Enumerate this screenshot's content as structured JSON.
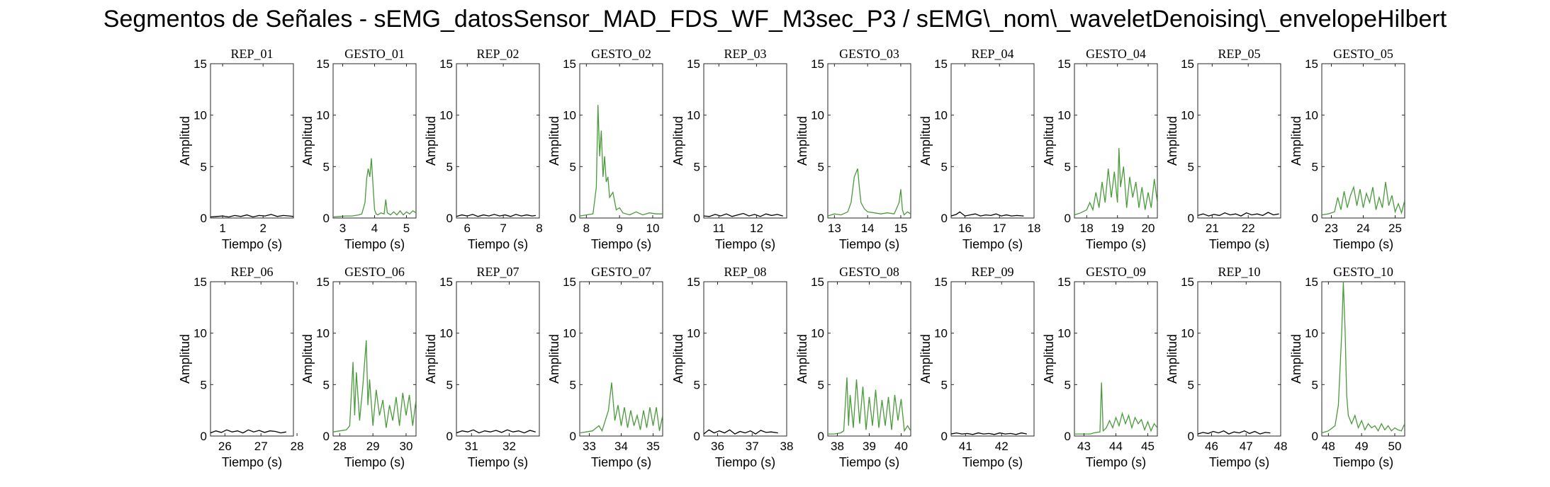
{
  "figure": {
    "title": "Segmentos de Señales - sEMG_datosSensor_MAD_FDS_WF_M3sec_P3 / sEMG\\_nom\\_waveletDenoising\\_envelopeHilbert"
  },
  "colors": {
    "rep": "#000000",
    "gesto": "#4a9a3c",
    "axes": "#262626"
  },
  "chart_data": [
    {
      "type": "line",
      "title": "REP_01",
      "xlabel": "Tiempo (s)",
      "ylabel": "Amplitud",
      "xlim": [
        0.7,
        2.75
      ],
      "ylim": [
        0,
        15
      ],
      "xticks": [
        1,
        2
      ],
      "yticks": [
        0,
        5,
        10,
        15
      ],
      "color": "#000000",
      "x": [
        0.7,
        0.85,
        1.0,
        1.15,
        1.3,
        1.45,
        1.6,
        1.75,
        1.9,
        2.05,
        2.2,
        2.35,
        2.5,
        2.65,
        2.75
      ],
      "y": [
        0.1,
        0.15,
        0.2,
        0.1,
        0.25,
        0.15,
        0.3,
        0.1,
        0.25,
        0.2,
        0.35,
        0.15,
        0.25,
        0.2,
        0.15
      ]
    },
    {
      "type": "line",
      "title": "GESTO_01",
      "xlabel": "Tiempo (s)",
      "ylabel": "Amplitud",
      "xlim": [
        2.7,
        5.3
      ],
      "ylim": [
        0,
        15
      ],
      "xticks": [
        3,
        4,
        5
      ],
      "yticks": [
        0,
        5,
        10,
        15
      ],
      "color": "#4a9a3c",
      "x": [
        2.7,
        2.9,
        3.1,
        3.3,
        3.5,
        3.6,
        3.7,
        3.75,
        3.8,
        3.85,
        3.9,
        3.95,
        4.0,
        4.05,
        4.1,
        4.2,
        4.3,
        4.35,
        4.4,
        4.5,
        4.6,
        4.7,
        4.8,
        4.9,
        5.0,
        5.1,
        5.2,
        5.3
      ],
      "y": [
        0.1,
        0.15,
        0.2,
        0.2,
        0.3,
        0.4,
        1.5,
        3.8,
        4.8,
        4.0,
        5.8,
        3.2,
        0.8,
        0.4,
        0.3,
        0.5,
        0.4,
        1.8,
        0.5,
        0.3,
        0.6,
        0.3,
        0.7,
        0.3,
        0.6,
        0.4,
        0.7,
        0.5
      ]
    },
    {
      "type": "line",
      "title": "REP_02",
      "xlabel": "Tiempo (s)",
      "ylabel": "Amplitud",
      "xlim": [
        5.7,
        8.0
      ],
      "ylim": [
        0,
        15
      ],
      "xticks": [
        6,
        7,
        8
      ],
      "yticks": [
        0,
        5,
        10,
        15
      ],
      "color": "#000000",
      "x": [
        5.7,
        5.85,
        6.0,
        6.15,
        6.3,
        6.45,
        6.6,
        6.75,
        6.9,
        7.05,
        7.2,
        7.35,
        7.5,
        7.65,
        7.8,
        7.9
      ],
      "y": [
        0.15,
        0.3,
        0.2,
        0.35,
        0.15,
        0.3,
        0.2,
        0.35,
        0.2,
        0.3,
        0.15,
        0.35,
        0.2,
        0.3,
        0.2,
        0.25
      ]
    },
    {
      "type": "line",
      "title": "GESTO_02",
      "xlabel": "Tiempo (s)",
      "ylabel": "Amplitud",
      "xlim": [
        7.8,
        10.3
      ],
      "ylim": [
        0,
        15
      ],
      "xticks": [
        8,
        9,
        10
      ],
      "yticks": [
        0,
        5,
        10,
        15
      ],
      "color": "#4a9a3c",
      "x": [
        7.8,
        8.0,
        8.2,
        8.3,
        8.35,
        8.4,
        8.45,
        8.5,
        8.55,
        8.6,
        8.65,
        8.7,
        8.8,
        8.9,
        9.0,
        9.1,
        9.3,
        9.5,
        9.7,
        9.9,
        10.1,
        10.3
      ],
      "y": [
        0.2,
        0.3,
        0.4,
        3.0,
        11.0,
        6.0,
        8.5,
        4.0,
        6.0,
        3.5,
        4.0,
        2.0,
        2.5,
        0.8,
        1.0,
        0.5,
        0.3,
        0.6,
        0.3,
        0.5,
        0.4,
        0.4
      ]
    },
    {
      "type": "line",
      "title": "REP_03",
      "xlabel": "Tiempo (s)",
      "ylabel": "Amplitud",
      "xlim": [
        10.6,
        12.8
      ],
      "ylim": [
        0,
        15
      ],
      "xticks": [
        11,
        12
      ],
      "yticks": [
        0,
        5,
        10,
        15
      ],
      "color": "#000000",
      "x": [
        10.6,
        10.75,
        10.9,
        11.05,
        11.2,
        11.35,
        11.5,
        11.65,
        11.8,
        11.95,
        12.1,
        12.25,
        12.4,
        12.55,
        12.7
      ],
      "y": [
        0.2,
        0.15,
        0.35,
        0.2,
        0.4,
        0.15,
        0.3,
        0.45,
        0.2,
        0.35,
        0.15,
        0.4,
        0.25,
        0.35,
        0.2
      ]
    },
    {
      "type": "line",
      "title": "GESTO_03",
      "xlabel": "Tiempo (s)",
      "ylabel": "Amplitud",
      "xlim": [
        12.8,
        15.3
      ],
      "ylim": [
        0,
        15
      ],
      "xticks": [
        13,
        14,
        15
      ],
      "yticks": [
        0,
        5,
        10,
        15
      ],
      "color": "#4a9a3c",
      "x": [
        12.8,
        13.0,
        13.2,
        13.4,
        13.5,
        13.6,
        13.7,
        13.75,
        13.8,
        13.9,
        14.0,
        14.2,
        14.4,
        14.6,
        14.8,
        14.95,
        15.0,
        15.05,
        15.1,
        15.2,
        15.3
      ],
      "y": [
        0.2,
        0.4,
        0.3,
        0.6,
        1.5,
        4.0,
        4.8,
        3.0,
        1.5,
        0.9,
        0.6,
        0.5,
        0.4,
        0.5,
        0.4,
        1.5,
        2.8,
        0.8,
        0.3,
        0.6,
        0.4
      ]
    },
    {
      "type": "line",
      "title": "REP_04",
      "xlabel": "Tiempo (s)",
      "ylabel": "Amplitud",
      "xlim": [
        15.6,
        18.0
      ],
      "ylim": [
        0,
        15
      ],
      "xticks": [
        16,
        17,
        18
      ],
      "yticks": [
        0,
        5,
        10,
        15
      ],
      "color": "#000000",
      "x": [
        15.6,
        15.75,
        15.85,
        16.0,
        16.15,
        16.3,
        16.45,
        16.6,
        16.75,
        16.9,
        17.05,
        17.2,
        17.35,
        17.5,
        17.7
      ],
      "y": [
        0.2,
        0.35,
        0.6,
        0.2,
        0.3,
        0.4,
        0.2,
        0.3,
        0.25,
        0.4,
        0.2,
        0.3,
        0.2,
        0.25,
        0.2
      ]
    },
    {
      "type": "line",
      "title": "GESTO_04",
      "xlabel": "Tiempo (s)",
      "ylabel": "Amplitud",
      "xlim": [
        17.6,
        20.3
      ],
      "ylim": [
        0,
        15
      ],
      "xticks": [
        18,
        19,
        20
      ],
      "yticks": [
        0,
        5,
        10,
        15
      ],
      "color": "#4a9a3c",
      "x": [
        17.6,
        17.8,
        18.0,
        18.1,
        18.2,
        18.3,
        18.4,
        18.5,
        18.6,
        18.7,
        18.8,
        18.9,
        19.0,
        19.05,
        19.1,
        19.2,
        19.3,
        19.4,
        19.5,
        19.6,
        19.7,
        19.8,
        19.9,
        20.0,
        20.1,
        20.2,
        20.3
      ],
      "y": [
        0.3,
        0.5,
        0.8,
        1.5,
        0.8,
        2.5,
        1.0,
        3.5,
        1.5,
        4.8,
        2.0,
        4.5,
        1.5,
        6.8,
        3.0,
        5.0,
        1.0,
        4.0,
        2.0,
        3.5,
        1.0,
        3.0,
        0.8,
        2.5,
        1.0,
        3.8,
        1.5
      ]
    },
    {
      "type": "line",
      "title": "REP_05",
      "xlabel": "Tiempo (s)",
      "ylabel": "Amplitud",
      "xlim": [
        20.6,
        22.9
      ],
      "ylim": [
        0,
        15
      ],
      "xticks": [
        21,
        22
      ],
      "yticks": [
        0,
        5,
        10,
        15
      ],
      "color": "#000000",
      "x": [
        20.6,
        20.75,
        20.9,
        21.05,
        21.2,
        21.35,
        21.5,
        21.65,
        21.8,
        21.95,
        22.1,
        22.25,
        22.4,
        22.55,
        22.7,
        22.85
      ],
      "y": [
        0.25,
        0.4,
        0.2,
        0.35,
        0.25,
        0.5,
        0.3,
        0.4,
        0.2,
        0.5,
        0.3,
        0.4,
        0.25,
        0.55,
        0.3,
        0.4
      ]
    },
    {
      "type": "line",
      "title": "GESTO_05",
      "xlabel": "Tiempo (s)",
      "ylabel": "Amplitud",
      "xlim": [
        22.7,
        25.3
      ],
      "ylim": [
        0,
        15
      ],
      "xticks": [
        23,
        24,
        25
      ],
      "yticks": [
        0,
        5,
        10,
        15
      ],
      "color": "#4a9a3c",
      "x": [
        22.7,
        22.9,
        23.1,
        23.2,
        23.3,
        23.4,
        23.5,
        23.6,
        23.7,
        23.8,
        23.9,
        24.0,
        24.1,
        24.2,
        24.3,
        24.4,
        24.5,
        24.6,
        24.7,
        24.8,
        24.9,
        25.0,
        25.1,
        25.2,
        25.3
      ],
      "y": [
        0.3,
        0.4,
        0.6,
        2.0,
        0.8,
        2.6,
        1.0,
        2.2,
        3.0,
        1.2,
        2.8,
        1.0,
        2.4,
        1.5,
        3.0,
        0.8,
        2.0,
        1.0,
        3.5,
        1.2,
        2.2,
        0.6,
        1.4,
        0.5,
        1.7
      ]
    },
    {
      "type": "line",
      "title": "REP_06",
      "xlabel": "Tiempo (s)",
      "ylabel": "Amplitud",
      "xlim": [
        25.6,
        27.9
      ],
      "ylim": [
        0,
        15
      ],
      "xticks": [
        26,
        27,
        28
      ],
      "yticks": [
        0,
        5,
        10,
        15
      ],
      "color": "#000000",
      "x": [
        25.6,
        25.75,
        25.9,
        26.05,
        26.2,
        26.35,
        26.5,
        26.65,
        26.8,
        26.95,
        27.1,
        27.25,
        27.4,
        27.55,
        27.7
      ],
      "y": [
        0.3,
        0.5,
        0.35,
        0.6,
        0.4,
        0.5,
        0.3,
        0.6,
        0.4,
        0.55,
        0.35,
        0.5,
        0.45,
        0.3,
        0.4
      ]
    },
    {
      "type": "line",
      "title": "GESTO_06",
      "xlabel": "Tiempo (s)",
      "ylabel": "Amplitud",
      "xlim": [
        27.8,
        30.3
      ],
      "ylim": [
        0,
        15
      ],
      "xticks": [
        28,
        29,
        30
      ],
      "yticks": [
        0,
        5,
        10,
        15
      ],
      "color": "#4a9a3c",
      "x": [
        27.8,
        28.0,
        28.2,
        28.3,
        28.4,
        28.45,
        28.5,
        28.6,
        28.7,
        28.8,
        28.85,
        28.9,
        29.0,
        29.1,
        29.2,
        29.3,
        29.4,
        29.5,
        29.6,
        29.7,
        29.8,
        29.9,
        30.0,
        30.1,
        30.2,
        30.3
      ],
      "y": [
        0.4,
        0.5,
        0.6,
        1.0,
        7.2,
        2.0,
        6.2,
        1.5,
        5.0,
        9.3,
        3.0,
        5.5,
        1.0,
        4.5,
        2.0,
        3.5,
        0.8,
        3.0,
        1.5,
        3.8,
        1.0,
        4.2,
        2.0,
        4.0,
        1.0,
        3.5
      ]
    },
    {
      "type": "line",
      "title": "REP_07",
      "xlabel": "Tiempo (s)",
      "ylabel": "Amplitud",
      "xlim": [
        30.6,
        32.8
      ],
      "ylim": [
        0,
        15
      ],
      "xticks": [
        31,
        32
      ],
      "yticks": [
        0,
        5,
        10,
        15
      ],
      "color": "#000000",
      "x": [
        30.6,
        30.75,
        30.9,
        31.05,
        31.2,
        31.35,
        31.5,
        31.65,
        31.8,
        31.95,
        32.1,
        32.25,
        32.4,
        32.55,
        32.7
      ],
      "y": [
        0.3,
        0.5,
        0.4,
        0.6,
        0.3,
        0.5,
        0.4,
        0.55,
        0.35,
        0.6,
        0.4,
        0.5,
        0.3,
        0.55,
        0.4
      ]
    },
    {
      "type": "line",
      "title": "GESTO_07",
      "xlabel": "Tiempo (s)",
      "ylabel": "Amplitud",
      "xlim": [
        32.7,
        35.3
      ],
      "ylim": [
        0,
        15
      ],
      "xticks": [
        33,
        34,
        35
      ],
      "yticks": [
        0,
        5,
        10,
        15
      ],
      "color": "#4a9a3c",
      "x": [
        32.7,
        32.9,
        33.1,
        33.3,
        33.4,
        33.5,
        33.6,
        33.7,
        33.8,
        33.9,
        34.0,
        34.1,
        34.2,
        34.3,
        34.4,
        34.5,
        34.6,
        34.7,
        34.8,
        34.9,
        35.0,
        35.1,
        35.2,
        35.3
      ],
      "y": [
        0.3,
        0.4,
        0.5,
        1.0,
        0.5,
        1.5,
        2.5,
        5.2,
        1.5,
        3.0,
        1.0,
        2.8,
        0.8,
        2.5,
        1.0,
        2.0,
        0.6,
        2.5,
        0.8,
        2.8,
        1.0,
        2.8,
        0.5,
        2.0
      ]
    },
    {
      "type": "line",
      "title": "REP_08",
      "xlabel": "Tiempo (s)",
      "ylabel": "Amplitud",
      "xlim": [
        35.6,
        38.0
      ],
      "ylim": [
        0,
        15
      ],
      "xticks": [
        36,
        37,
        38
      ],
      "yticks": [
        0,
        5,
        10,
        15
      ],
      "color": "#000000",
      "x": [
        35.6,
        35.75,
        35.9,
        36.05,
        36.2,
        36.35,
        36.5,
        36.65,
        36.8,
        36.95,
        37.1,
        37.25,
        37.4,
        37.55,
        37.75
      ],
      "y": [
        0.2,
        0.6,
        0.3,
        0.5,
        0.3,
        0.6,
        0.2,
        0.45,
        0.3,
        0.5,
        0.2,
        0.55,
        0.35,
        0.4,
        0.3
      ]
    },
    {
      "type": "line",
      "title": "GESTO_08",
      "xlabel": "Tiempo (s)",
      "ylabel": "Amplitud",
      "xlim": [
        37.7,
        40.3
      ],
      "ylim": [
        0,
        15
      ],
      "xticks": [
        38,
        39,
        40
      ],
      "yticks": [
        0,
        5,
        10,
        15
      ],
      "color": "#4a9a3c",
      "x": [
        37.7,
        37.9,
        38.1,
        38.2,
        38.3,
        38.35,
        38.4,
        38.5,
        38.6,
        38.7,
        38.8,
        38.9,
        39.0,
        39.1,
        39.2,
        39.3,
        39.4,
        39.5,
        39.6,
        39.7,
        39.8,
        39.9,
        40.0,
        40.1,
        40.2,
        40.3
      ],
      "y": [
        0.2,
        0.2,
        0.3,
        0.5,
        5.7,
        1.0,
        4.0,
        0.8,
        5.5,
        1.2,
        4.8,
        0.6,
        3.8,
        1.0,
        4.5,
        0.8,
        3.5,
        1.0,
        3.8,
        0.6,
        4.0,
        1.5,
        3.6,
        0.5,
        1.0,
        0.5
      ]
    },
    {
      "type": "line",
      "title": "REP_09",
      "xlabel": "Tiempo (s)",
      "ylabel": "Amplitud",
      "xlim": [
        40.6,
        42.9
      ],
      "ylim": [
        0,
        15
      ],
      "xticks": [
        41,
        42
      ],
      "yticks": [
        0,
        5,
        10,
        15
      ],
      "color": "#000000",
      "x": [
        40.6,
        40.75,
        40.9,
        41.05,
        41.2,
        41.35,
        41.5,
        41.65,
        41.8,
        41.95,
        42.1,
        42.25,
        42.4,
        42.55,
        42.7
      ],
      "y": [
        0.2,
        0.3,
        0.2,
        0.25,
        0.15,
        0.3,
        0.2,
        0.25,
        0.15,
        0.3,
        0.2,
        0.25,
        0.15,
        0.3,
        0.2
      ]
    },
    {
      "type": "line",
      "title": "GESTO_09",
      "xlabel": "Tiempo (s)",
      "ylabel": "Amplitud",
      "xlim": [
        42.7,
        45.3
      ],
      "ylim": [
        0,
        15
      ],
      "xticks": [
        43,
        44,
        45
      ],
      "yticks": [
        0,
        5,
        10,
        15
      ],
      "color": "#4a9a3c",
      "x": [
        42.7,
        42.9,
        43.1,
        43.2,
        43.3,
        43.5,
        43.55,
        43.6,
        43.7,
        43.8,
        43.9,
        44.0,
        44.1,
        44.2,
        44.3,
        44.4,
        44.5,
        44.6,
        44.7,
        44.8,
        44.9,
        45.0,
        45.1,
        45.2,
        45.3
      ],
      "y": [
        0.2,
        0.2,
        0.2,
        0.2,
        0.3,
        0.4,
        5.2,
        0.5,
        0.8,
        1.5,
        0.8,
        1.8,
        1.0,
        2.2,
        1.2,
        2.0,
        0.8,
        1.8,
        1.2,
        1.6,
        0.6,
        1.4,
        0.5,
        1.2,
        0.8
      ]
    },
    {
      "type": "line",
      "title": "REP_10",
      "xlabel": "Tiempo (s)",
      "ylabel": "Amplitud",
      "xlim": [
        45.6,
        48.0
      ],
      "ylim": [
        0,
        15
      ],
      "xticks": [
        46,
        47,
        48
      ],
      "yticks": [
        0,
        5,
        10,
        15
      ],
      "color": "#000000",
      "x": [
        45.6,
        45.75,
        45.9,
        46.05,
        46.2,
        46.35,
        46.5,
        46.65,
        46.8,
        46.95,
        47.1,
        47.25,
        47.4,
        47.55,
        47.7
      ],
      "y": [
        0.2,
        0.35,
        0.25,
        0.45,
        0.3,
        0.5,
        0.2,
        0.4,
        0.3,
        0.5,
        0.25,
        0.45,
        0.2,
        0.35,
        0.3
      ]
    },
    {
      "type": "line",
      "title": "GESTO_10",
      "xlabel": "Tiempo (s)",
      "ylabel": "Amplitud",
      "xlim": [
        47.8,
        50.3
      ],
      "ylim": [
        0,
        15
      ],
      "xticks": [
        48,
        49,
        50
      ],
      "yticks": [
        0,
        5,
        10,
        15
      ],
      "color": "#4a9a3c",
      "x": [
        47.8,
        48.0,
        48.2,
        48.3,
        48.4,
        48.45,
        48.5,
        48.55,
        48.6,
        48.7,
        48.8,
        48.9,
        49.0,
        49.1,
        49.2,
        49.3,
        49.4,
        49.5,
        49.6,
        49.7,
        49.8,
        49.9,
        50.0,
        50.1,
        50.2,
        50.3
      ],
      "y": [
        0.3,
        0.5,
        1.0,
        3.0,
        10.0,
        15.0,
        10.5,
        4.0,
        2.0,
        1.2,
        2.0,
        0.8,
        1.5,
        0.6,
        1.2,
        0.8,
        1.0,
        0.5,
        1.2,
        0.6,
        1.0,
        0.5,
        0.8,
        0.6,
        0.5,
        1.2
      ]
    }
  ]
}
